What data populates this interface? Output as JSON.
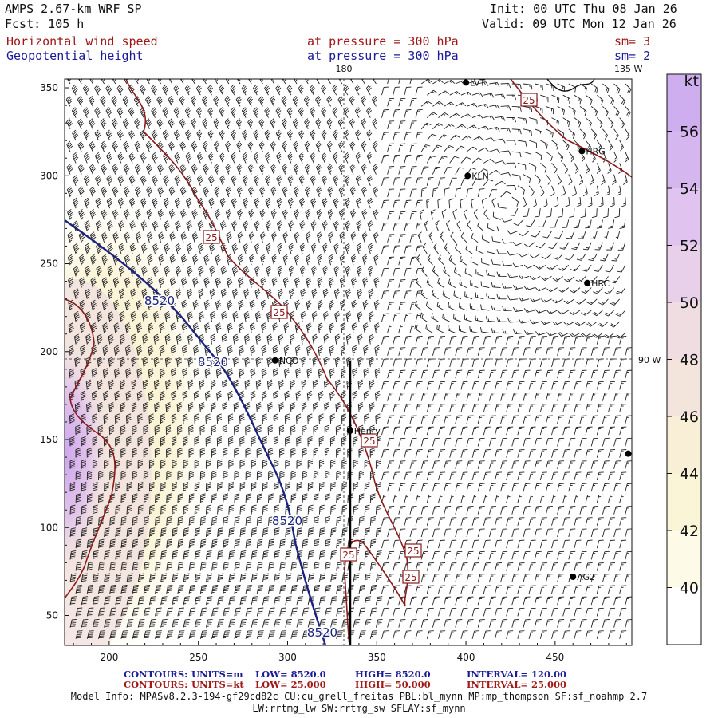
{
  "header": {
    "title": "AMPS 2.67-km WRF SP",
    "forecast": "Fcst:  105 h",
    "init": "Init: 00 UTC Thu 08 Jan 26",
    "valid": "Valid: 09 UTC Mon 12 Jan 26",
    "field1": "Horizontal wind speed",
    "field1_level": "at pressure =  300 hPa",
    "field1_smooth": "sm= 3",
    "field2": "Geopotential height",
    "field2_level": "at pressure =  300 hPa",
    "field2_smooth": "sm= 2"
  },
  "colors": {
    "wind_contour": "#8b1a1a",
    "height_contour": "#1a237e",
    "text_red": "#a01818",
    "text_blue": "#1a1a9a",
    "shade_40": "#fbf7df",
    "shade_46": "#f1e1df",
    "shade_56": "#d8b8ec"
  },
  "chart_data": {
    "type": "contour-map",
    "x_ticks": [
      200,
      250,
      300,
      350,
      400,
      450
    ],
    "y_ticks": [
      50,
      100,
      150,
      200,
      250,
      300,
      350
    ],
    "xlim": [
      175,
      493
    ],
    "ylim": [
      33,
      355
    ],
    "longitude_labels": [
      "180",
      "135 W",
      "90 W"
    ],
    "colorbar": {
      "unit": "kt",
      "ticks": [
        40,
        42,
        44,
        46,
        48,
        50,
        52,
        54,
        56
      ],
      "range": [
        38,
        58
      ],
      "colors": [
        "#ffffff",
        "#fdfbe8",
        "#faf5d6",
        "#f8efd6",
        "#f3e4dc",
        "#efdde2",
        "#e8d0ea",
        "#e0c4ef",
        "#d6b6ef",
        "#cfaeef"
      ]
    },
    "wind_contours": {
      "value_label": "25",
      "level_kt": 25
    },
    "height_contours": {
      "value_label": "8520",
      "level_m": 8520
    },
    "stations": [
      {
        "name": "LVT",
        "x": 400,
        "y": 353
      },
      {
        "name": "HRG",
        "x": 465,
        "y": 314
      },
      {
        "name": "KLN",
        "x": 401,
        "y": 300
      },
      {
        "name": "HRC",
        "x": 468,
        "y": 239
      },
      {
        "name": "NCO",
        "x": 293,
        "y": 195
      },
      {
        "name": "Henry",
        "x": 335,
        "y": 155
      },
      {
        "name": "",
        "x": 491,
        "y": 142
      },
      {
        "name": "AG2",
        "x": 460,
        "y": 72
      }
    ],
    "cross_section": {
      "x": [
        335,
        335
      ],
      "y": [
        195,
        33
      ]
    }
  },
  "footer": {
    "c1_label": "CONTOURS:",
    "c1_units": "UNITS=m",
    "c1_low": "LOW=   8520.0",
    "c1_high": "HIGH=  8520.0",
    "c1_interval": "INTERVAL=    120.00",
    "c2_label": "CONTOURS:",
    "c2_units": "UNITS=kt",
    "c2_low": "LOW=   25.000",
    "c2_high": "HIGH=  50.000",
    "c2_interval": "INTERVAL=     25.000",
    "model_info": "Model Info: MPASv8.2.3-194-gf29cd82c CU:cu_grell_freitas PBL:bl_mynn MP:mp_thompson SF:sf_noahmp 2.7",
    "model_info2": "LW:rrtmg_lw SW:rrtmg_sw SFLAY:sf_mynn"
  }
}
